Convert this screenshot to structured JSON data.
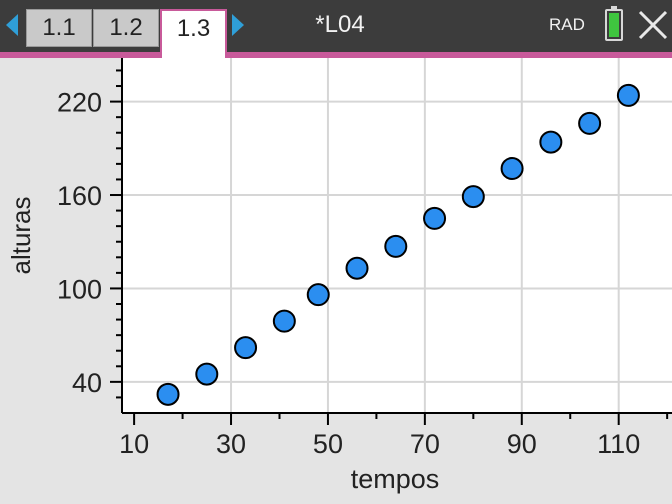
{
  "titlebar": {
    "tabs": [
      {
        "label": "1.1",
        "active": false
      },
      {
        "label": "1.2",
        "active": false
      },
      {
        "label": "1.3",
        "active": true
      }
    ],
    "document_title": "*L04",
    "angle_mode": "RAD",
    "icons": {
      "prev": "triangle-left-icon",
      "next": "triangle-right-icon",
      "battery": "battery-icon",
      "close": "close-icon"
    },
    "colors": {
      "bar": "#3c3c3c",
      "accent": "#c85a9a",
      "arrows": "#2f9fd8",
      "battery": "#3fc63f"
    }
  },
  "chart_data": {
    "type": "scatter",
    "xlabel": "tempos",
    "ylabel": "alturas",
    "x_ticks": [
      10,
      30,
      50,
      70,
      90,
      110
    ],
    "y_ticks": [
      40,
      100,
      160,
      220
    ],
    "xlim": [
      7.5,
      121
    ],
    "ylim": [
      20,
      248
    ],
    "grid": true,
    "point_color": "#2b8ef0",
    "points": [
      {
        "x": 17,
        "y": 32
      },
      {
        "x": 25,
        "y": 45
      },
      {
        "x": 33,
        "y": 62
      },
      {
        "x": 41,
        "y": 79
      },
      {
        "x": 48,
        "y": 96
      },
      {
        "x": 56,
        "y": 113
      },
      {
        "x": 64,
        "y": 127
      },
      {
        "x": 72,
        "y": 145
      },
      {
        "x": 80,
        "y": 159
      },
      {
        "x": 88,
        "y": 177
      },
      {
        "x": 96,
        "y": 194
      },
      {
        "x": 104,
        "y": 206
      },
      {
        "x": 112,
        "y": 224
      }
    ]
  }
}
